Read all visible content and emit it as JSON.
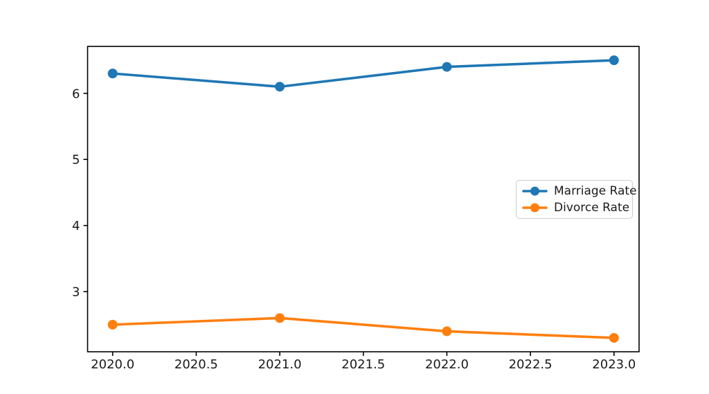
{
  "figure": {
    "background_color": "#ffffff",
    "axis_color": "#000000",
    "tick_label_color": "#1a1a1a",
    "legend_border_color": "#cccccc"
  },
  "chart_data": {
    "type": "line",
    "title": "",
    "xlabel": "",
    "ylabel": "",
    "x": [
      2020,
      2021,
      2022,
      2023
    ],
    "series": [
      {
        "name": "Marriage Rate",
        "values": [
          6.3,
          6.1,
          6.4,
          6.5
        ],
        "color": "#1f77b4"
      },
      {
        "name": "Divorce Rate",
        "values": [
          2.5,
          2.6,
          2.4,
          2.3
        ],
        "color": "#ff7f0e"
      }
    ],
    "xlim": [
      2019.85,
      2023.15
    ],
    "ylim": [
      2.09,
      6.71
    ],
    "xticks": [
      2020.0,
      2020.5,
      2021.0,
      2021.5,
      2022.0,
      2022.5,
      2023.0
    ],
    "xtick_labels": [
      "2020.0",
      "2020.5",
      "2021.0",
      "2021.5",
      "2022.0",
      "2022.5",
      "2023.0"
    ],
    "yticks": [
      3,
      4,
      5,
      6
    ],
    "ytick_labels": [
      "3",
      "4",
      "5",
      "6"
    ],
    "grid": false,
    "legend_position": "center-right",
    "legend_entries": [
      "Marriage Rate",
      "Divorce Rate"
    ],
    "marker": "circle"
  }
}
